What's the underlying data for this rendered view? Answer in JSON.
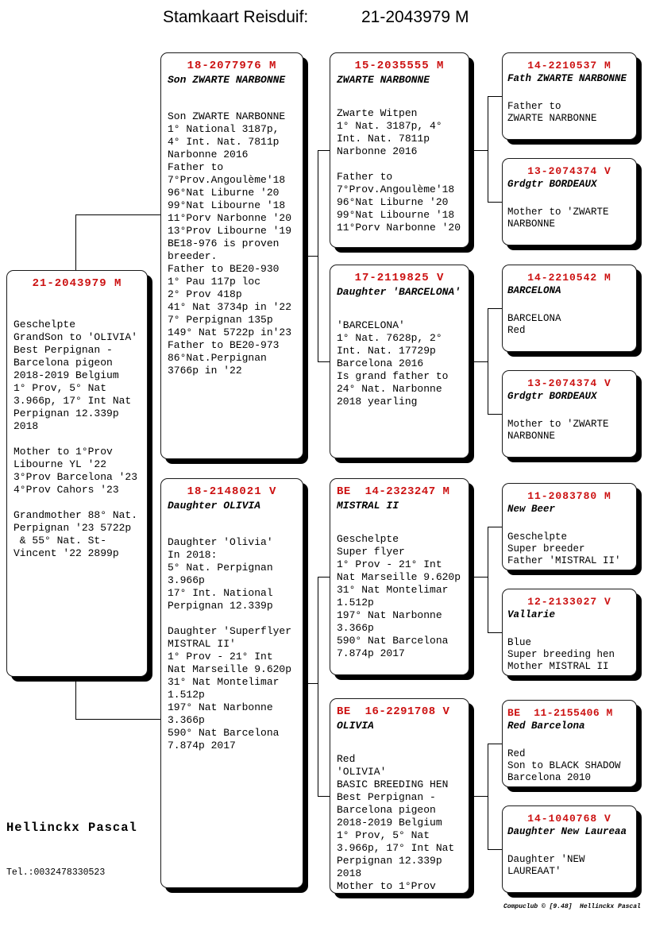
{
  "title": {
    "label": "Stamkaart Reisduif:",
    "ring": "21-2043979 M"
  },
  "owner": {
    "name": "Hellinckx Pascal",
    "phone": "Tel.:0032478330523"
  },
  "footer_credit": "Compuclub © [9.48]  Hellinckx Pascal",
  "colors": {
    "ring_red": "#cc1111",
    "text": "#000000",
    "box_border": "#1a1a1a"
  },
  "boxes": [
    {
      "id": "subject",
      "relation": "subject",
      "ring": "21-2043979 M",
      "name": "",
      "body": "Geschelpte\nGrandSon to 'OLIVIA'\nBest Perpignan -\nBarcelona pigeon\n2018-2019 Belgium\n1° Prov, 5° Nat\n3.966p, 17° Int Nat\nPerpignan 12.339p\n2018\n\nMother to 1°Prov\nLibourne YL '22\n3°Prov Barcelona '23\n4°Prov Cahors '23\n\nGrandmother 88° Nat.\nPerpignan '23 5722p\n & 55° Nat. St-\nVincent '22 2899p"
    },
    {
      "id": "father",
      "relation": "father",
      "ring": "18-2077976 M",
      "name": "Son ZWARTE NARBONNE",
      "body": "Son ZWARTE NARBONNE\n1° National 3187p,\n4° Int. Nat. 7811p\nNarbonne 2016\nFather to\n7°Prov.Angoulème'18\n96°Nat Liburne '20\n99°Nat Libourne '18\n11°Porv Narbonne '20\n13°Prov Libourne '19\nBE18-976 is proven\nbreeder.\nFather to BE20-930\n1° Pau 117p loc\n2° Prov 418p\n41° Nat 3734p in '22\n7° Perpignan 135p\n149° Nat 5722p in'23\nFather to BE20-973\n86°Nat.Perpignan\n3766p in '22"
    },
    {
      "id": "mother",
      "relation": "mother",
      "ring": "18-2148021 V",
      "name": "Daughter OLIVIA",
      "body": "Daughter 'Olivia'\nIn 2018:\n5° Nat. Perpignan\n3.966p\n17° Int. National\nPerpignan 12.339p\n\nDaughter 'Superflyer\nMISTRAL II'\n1° Prov - 21° Int\nNat Marseille 9.620p\n31° Nat Montelimar\n1.512p\n197° Nat Narbonne\n3.366p\n590° Nat Barcelona\n7.874p 2017"
    },
    {
      "id": "pgf",
      "relation": "paternal-grandfather",
      "ring": "15-2035555 M",
      "name": "ZWARTE NARBONNE",
      "body": "Zwarte Witpen\n1° Nat. 3187p, 4°\nInt. Nat. 7811p\nNarbonne 2016\n\nFather to\n7°Prov.Angoulème'18\n96°Nat Liburne '20\n99°Nat Libourne '18\n11°Porv Narbonne '20"
    },
    {
      "id": "pgm",
      "relation": "paternal-grandmother",
      "ring": "17-2119825 V",
      "name": "Daughter 'BARCELONA'",
      "body": "'BARCELONA'\n1° Nat. 7628p, 2°\nInt. Nat. 17729p\nBarcelona 2016\nIs grand father to\n24° Nat. Narbonne\n2018 yearling"
    },
    {
      "id": "mgf",
      "relation": "maternal-grandfather",
      "ring": "BE  14-2323247 M",
      "name": "MISTRAL II",
      "body": "Geschelpte\nSuper flyer\n1° Prov - 21° Int\nNat Marseille 9.620p\n31° Nat Montelimar\n1.512p\n197° Nat Narbonne\n3.366p\n590° Nat Barcelona\n7.874p 2017"
    },
    {
      "id": "mgm",
      "relation": "maternal-grandmother",
      "ring": "BE  16-2291708 V",
      "name": "OLIVIA",
      "body": "Red\n'OLIVIA'\nBASIC BREEDING HEN\nBest Perpignan -\nBarcelona pigeon\n2018-2019 Belgium\n1° Prov, 5° Nat\n3.966p, 17° Int Nat\nPerpignan 12.339p\n2018\nMother to 1°Prov"
    },
    {
      "id": "pgf_f",
      "relation": "great-grandfather",
      "ring": "14-2210537 M",
      "name": "Fath ZWARTE NARBONNE",
      "body": "Father to\nZWARTE NARBONNE"
    },
    {
      "id": "pgf_m",
      "relation": "great-grandmother",
      "ring": "13-2074374 V",
      "name": "Grdgtr BORDEAUX",
      "body": "Mother to 'ZWARTE\nNARBONNE"
    },
    {
      "id": "pgm_f",
      "relation": "great-grandfather",
      "ring": "14-2210542 M",
      "name": "BARCELONA",
      "body": "BARCELONA\nRed"
    },
    {
      "id": "pgm_m",
      "relation": "great-grandmother",
      "ring": "13-2074374 V",
      "name": "Grdgtr BORDEAUX",
      "body": "Mother to 'ZWARTE\nNARBONNE"
    },
    {
      "id": "mgf_f",
      "relation": "great-grandfather",
      "ring": "11-2083780 M",
      "name": "New Beer",
      "body": "Geschelpte\nSuper breeder\nFather 'MISTRAL II'"
    },
    {
      "id": "mgf_m",
      "relation": "great-grandmother",
      "ring": "12-2133027 V",
      "name": "Vallarie",
      "body": "Blue\nSuper breeding hen\nMother MISTRAL II"
    },
    {
      "id": "mgm_f",
      "relation": "great-grandfather",
      "ring": "BE  11-2155406 M",
      "name": "Red Barcelona",
      "body": "Red\nSon to BLACK SHADOW\nBarcelona 2010"
    },
    {
      "id": "mgm_m",
      "relation": "great-grandmother",
      "ring": "14-1040768 V",
      "name": "Daughter New Laureaa",
      "body": "Daughter 'NEW\nLAUREAAT'"
    }
  ]
}
